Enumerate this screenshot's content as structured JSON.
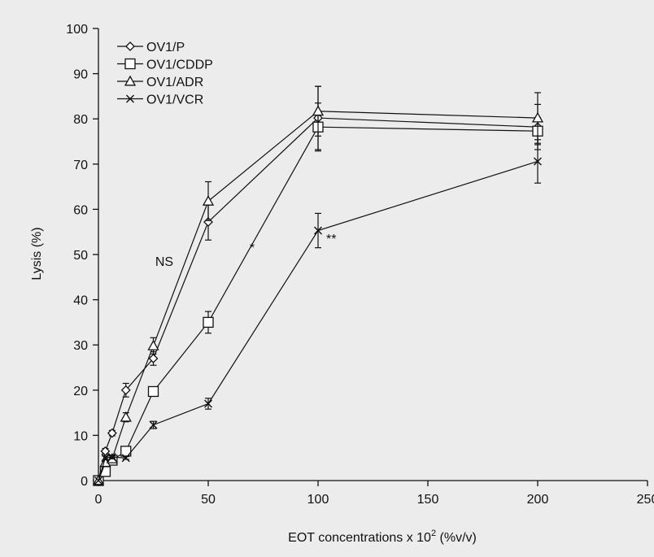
{
  "chart_data": {
    "type": "line",
    "xlabel": "EOT concentrations x 10",
    "xlabel_superscript": "2",
    "xlabel_suffix": " (%v/v)",
    "ylabel": "Lysis (%)",
    "xlim": [
      0,
      250
    ],
    "ylim": [
      0,
      100
    ],
    "xticks": [
      0,
      50,
      100,
      150,
      200,
      250
    ],
    "yticks": [
      0,
      10,
      20,
      30,
      40,
      50,
      60,
      70,
      80,
      90,
      100
    ],
    "grid": false,
    "legend_position": "top-left",
    "series": [
      {
        "name": "OV1/P",
        "marker": "diamond",
        "x": [
          0,
          3.125,
          6.25,
          12.5,
          25,
          50,
          100,
          200
        ],
        "y": [
          0,
          6.5,
          10.5,
          20,
          27,
          57.2,
          80.2,
          78.2
        ],
        "err": [
          0,
          0.6,
          0.6,
          1.5,
          1.5,
          4,
          7,
          5
        ]
      },
      {
        "name": "OV1/CDDP",
        "marker": "square",
        "x": [
          0,
          3.125,
          6.25,
          12.5,
          25,
          50,
          100,
          200
        ],
        "y": [
          0,
          2,
          4.5,
          6.5,
          19.7,
          35,
          78.2,
          77.3
        ],
        "err": [
          0,
          0.5,
          0.6,
          0.6,
          1,
          2.4,
          5.3,
          3
        ]
      },
      {
        "name": "OV1/ADR",
        "marker": "triangle",
        "x": [
          0,
          3.125,
          6.25,
          12.5,
          25,
          50,
          100,
          200
        ],
        "y": [
          0,
          4,
          4.8,
          14,
          29.8,
          61.8,
          81.7,
          80.2
        ],
        "err": [
          0,
          0.6,
          0.6,
          1,
          1.8,
          4.3,
          5.5,
          5.6
        ]
      },
      {
        "name": "OV1/VCR",
        "marker": "cross",
        "x": [
          0,
          3.125,
          6.25,
          12.5,
          25,
          50,
          100,
          200
        ],
        "y": [
          0,
          5,
          5.2,
          5,
          12.3,
          17,
          55.3,
          70.6
        ],
        "err": [
          0,
          0.4,
          0.4,
          0.3,
          0.8,
          1.2,
          3.8,
          4.8
        ]
      }
    ],
    "annotations": [
      {
        "text": "NS",
        "x": 30,
        "y": 47.5
      },
      {
        "text": "*",
        "x": 70,
        "y": 50.5
      },
      {
        "text": "**",
        "x": 106,
        "y": 52.5
      }
    ]
  }
}
